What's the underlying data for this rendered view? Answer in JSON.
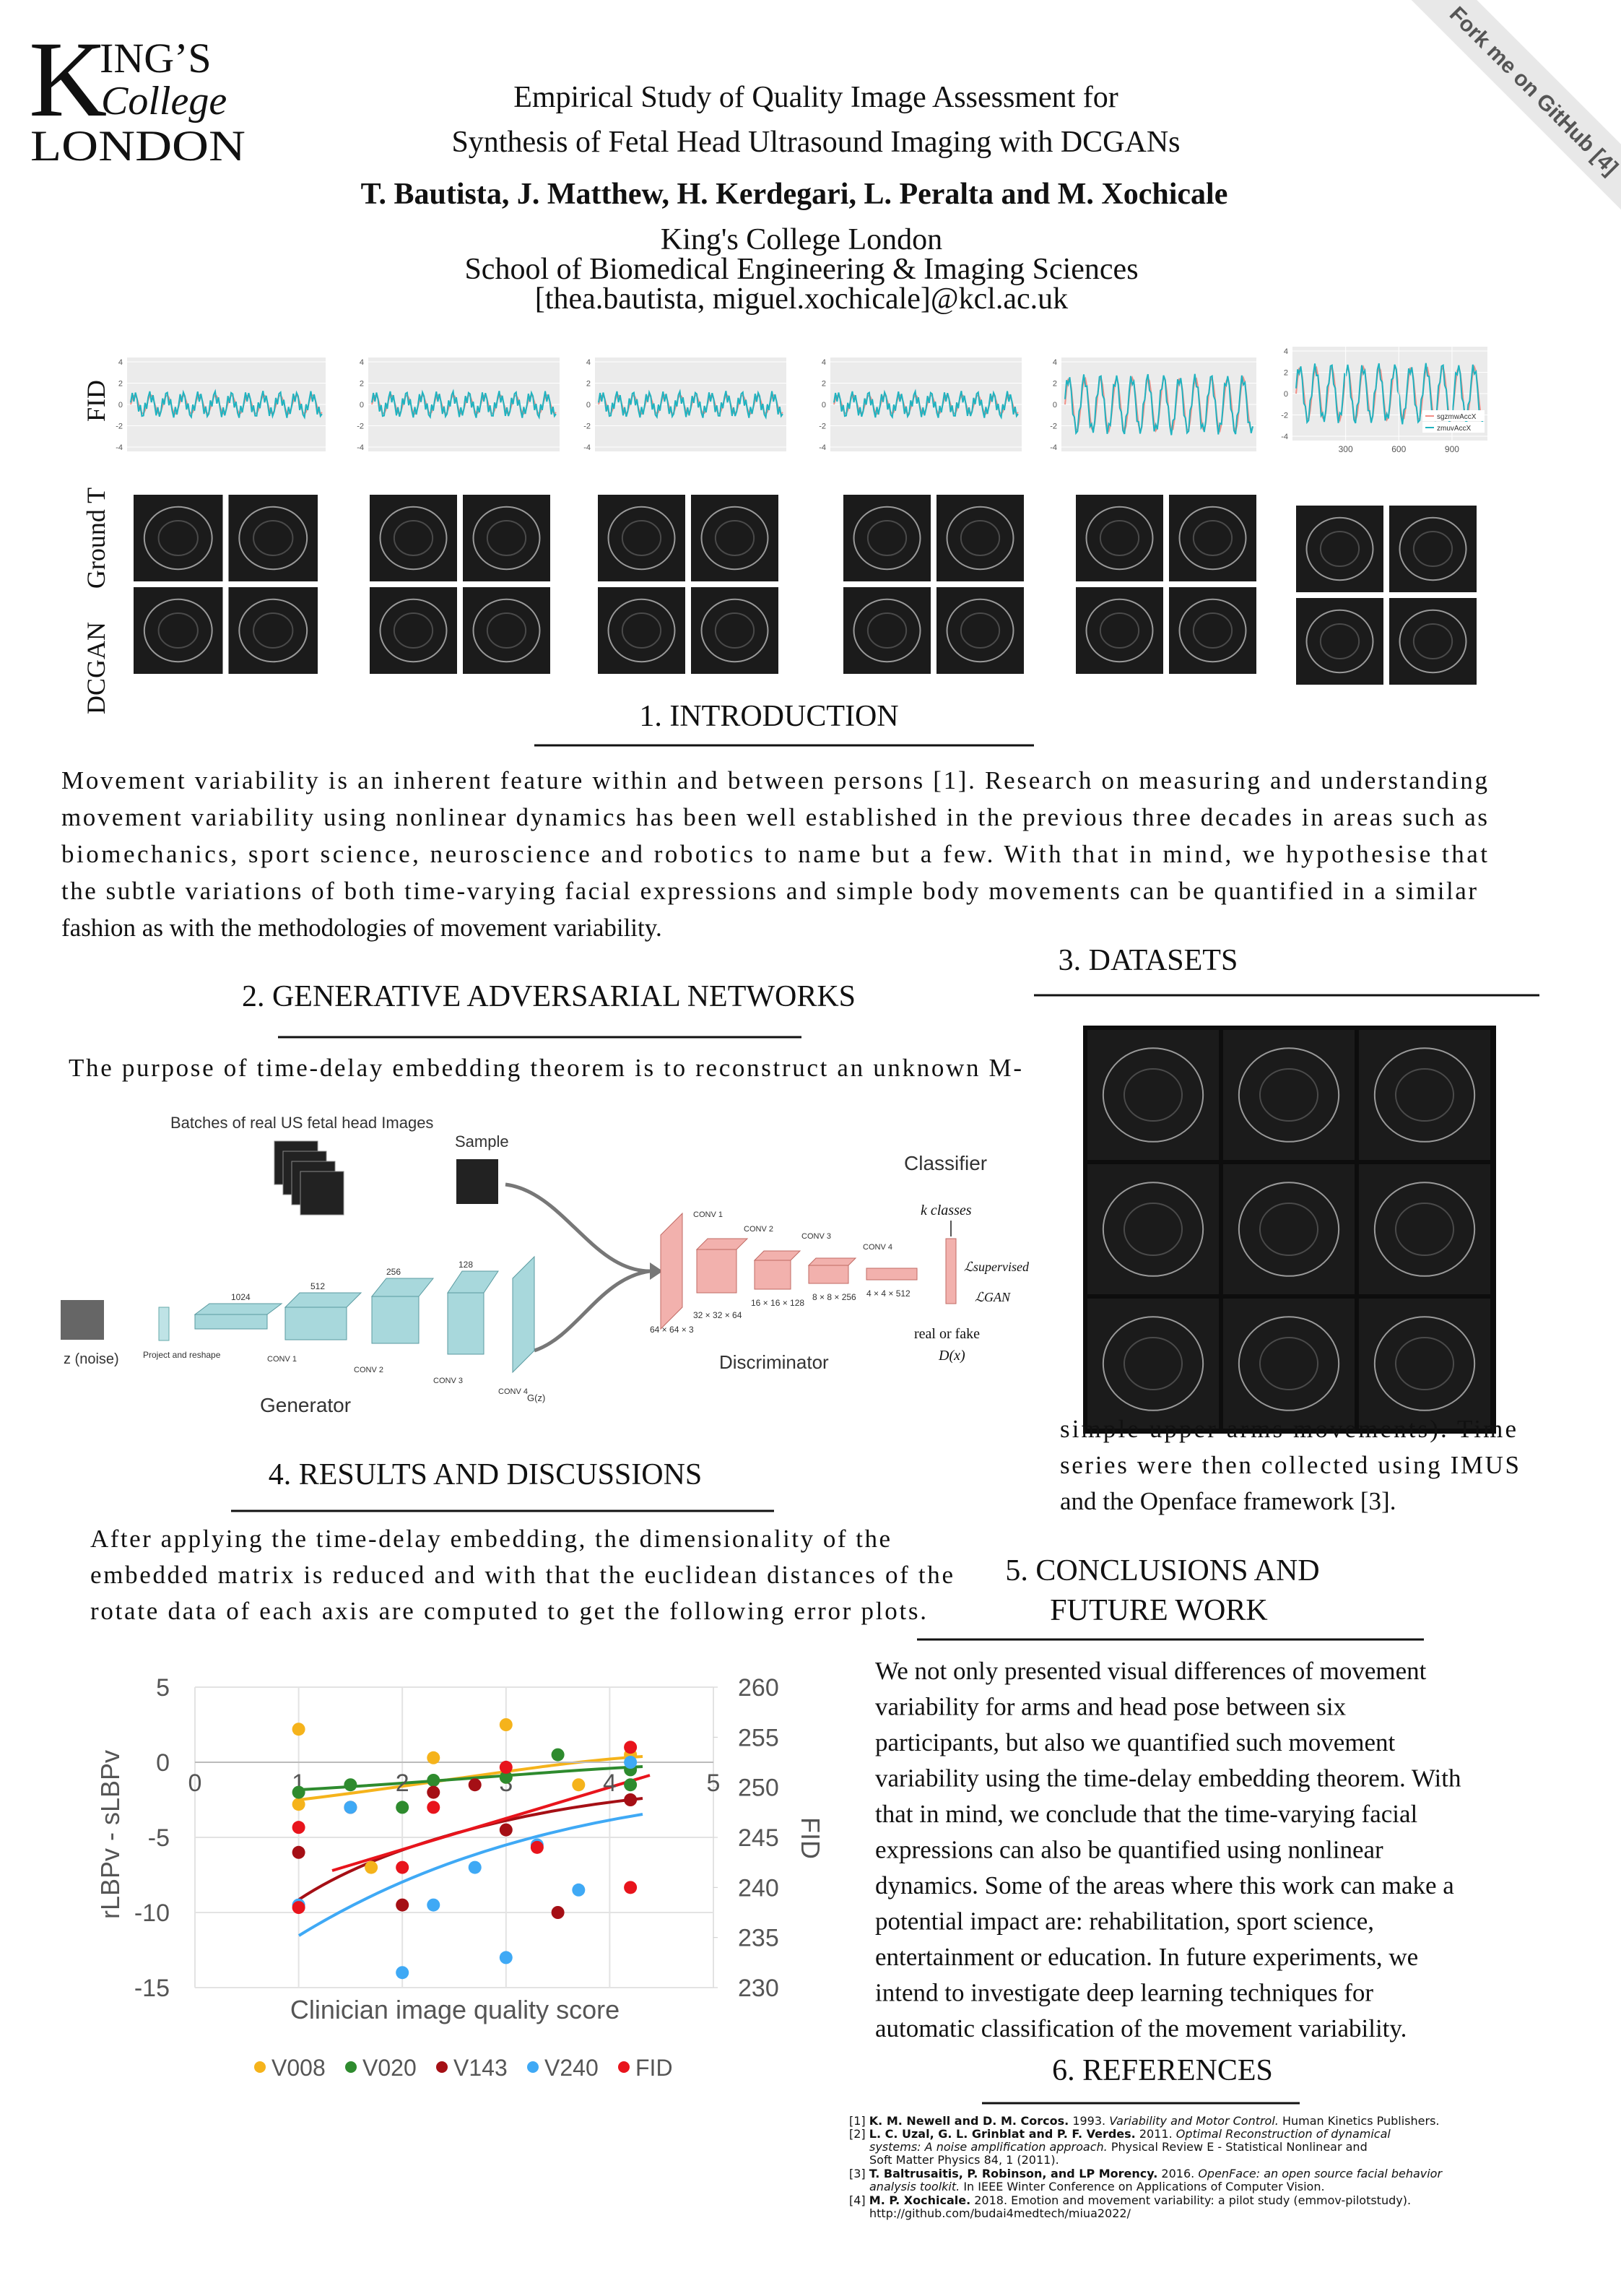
{
  "logo": {
    "initial": "K",
    "rest": "ING’S",
    "college": "College",
    "london": "LONDON"
  },
  "ribbon": "Fork me on GitHub [4]",
  "header": {
    "title": [
      "Empirical Study of Quality Image Assessment for",
      "Synthesis of Fetal Head Ultrasound Imaging with DCGANs"
    ],
    "authors": "T. Bautista, J. Matthew, H. Kerdegari, L. Peralta and M. Xochicale",
    "affiliation": [
      "King's College London",
      "School of Biomedical Engineering & Imaging Sciences",
      "[thea.bautista, miguel.xochicale]@kcl.ac.uk"
    ]
  },
  "row_labels": [
    "FID",
    "Ground T",
    "DCGAN"
  ],
  "fid_plots": {
    "yticks": [
      4,
      2,
      0,
      -2,
      -4
    ],
    "xticks": [
      300,
      600,
      900
    ],
    "legend": [
      "sgzmwAccX",
      "zmuvAccX"
    ]
  },
  "introduction": {
    "heading": "1. INTRODUCTION",
    "lines": [
      "Movement variability is an inherent feature within and between persons [1]. Research on measuring and understanding",
      "movement variability using nonlinear dynamics has been well established in the previous three decades in areas such as",
      "biomechanics, sport science, neuroscience and robotics to name but a few. With that in mind, we hypothesise that",
      "the subtle variations of both time-varying facial expressions and simple body movements can be quantified in a similar",
      "fashion as with the methodologies of movement variability."
    ]
  },
  "gan": {
    "heading": "2. GENERATIVE ADVERSARIAL NETWORKS",
    "lines": [
      "The purpose of time-delay embedding theorem is to reconstruct an unknown M-"
    ],
    "figure": {
      "batches": "Batches of real US fetal head Images",
      "sample": "Sample",
      "classifier": "Classifier",
      "k_classes": "k classes",
      "real_fake": "real or fake",
      "dx": "D(x)",
      "noise": "z (noise)",
      "generator": "Generator",
      "discriminator": "Discriminator",
      "project": "Project and reshape",
      "gz": "G(z)",
      "l_sup": "ℒsupervised",
      "l_gan": "ℒGAN",
      "gen_convs": [
        "CONV 1",
        "CONV 2",
        "CONV 3",
        "CONV 4"
      ],
      "gen_sizes": [
        "1024",
        "512",
        "256",
        "128"
      ],
      "disc_convs": [
        "CONV 1",
        "CONV 2",
        "CONV 3",
        "CONV 4"
      ],
      "disc_sizes": [
        "64 × 64 × 3",
        "32 × 32 × 64",
        "16 × 16 × 128",
        "8 × 8 × 256",
        "4 × 4 × 512"
      ]
    }
  },
  "datasets": {
    "heading": "3. DATASETS",
    "lines": [
      "simple upper arms movements). Time",
      "series were then collected using IMUS",
      "and the Openface framework [3]."
    ]
  },
  "results": {
    "heading": "4. RESULTS AND DISCUSSIONS",
    "lines": [
      "After applying the time-delay embedding, the dimensionality of the",
      "embedded matrix is reduced and with that the euclidean distances of the",
      "rotate data of each axis are computed to get the following error plots."
    ],
    "chart": {
      "type": "scatter",
      "x_label": "Clinician image quality score",
      "y_label": "rLBPv - sLBPv",
      "y2_label": "FID",
      "xlim": [
        0,
        5
      ],
      "xticks": [
        0,
        1,
        2,
        3,
        4,
        5
      ],
      "ylim": [
        -15,
        5
      ],
      "yticks": [
        5,
        0,
        -5,
        -10,
        -15
      ],
      "y2lim": [
        230,
        260
      ],
      "y2ticks": [
        260,
        255,
        250,
        245,
        240,
        235,
        230
      ],
      "grid": true,
      "series": [
        {
          "name": "V008",
          "color": "#f5b31b",
          "x": [
            1,
            1,
            1.7,
            2.3,
            3,
            3,
            3.7,
            4.2
          ],
          "values": [
            2.2,
            -2.8,
            -7,
            0.3,
            2.5,
            -1,
            -1.5,
            0.5
          ]
        },
        {
          "name": "V020",
          "color": "#2e8b2e",
          "x": [
            1,
            1.5,
            2,
            2.3,
            3,
            3.5,
            4.2,
            4.2
          ],
          "values": [
            -2,
            -1.5,
            -3,
            -1.2,
            -1,
            0.5,
            -0.5,
            -1.5
          ]
        },
        {
          "name": "V143",
          "color": "#a50f15",
          "x": [
            1,
            1.5,
            2,
            2.3,
            2.7,
            3,
            3.5,
            4.2
          ],
          "values": [
            -6,
            -3,
            -9.5,
            -2,
            -1.5,
            -4.5,
            -10,
            -2.5
          ]
        },
        {
          "name": "V240",
          "color": "#3fa9f5",
          "x": [
            1,
            1.5,
            2,
            2.3,
            2.7,
            3,
            3.3,
            3.7,
            4.2
          ],
          "values": [
            -9.5,
            -3,
            -14,
            -9.5,
            -7,
            -13,
            -5.5,
            -8.5,
            0
          ]
        },
        {
          "name": "FID",
          "color": "#e8141c",
          "axis": "y2",
          "x": [
            1,
            1,
            2,
            2.3,
            3,
            3.3,
            4.2,
            4.2
          ],
          "values": [
            246,
            238,
            242,
            248,
            252,
            244,
            254,
            240
          ]
        }
      ]
    }
  },
  "conclusions": {
    "heading": [
      "5. CONCLUSIONS AND",
      "FUTURE WORK"
    ],
    "lines": [
      "We not only presented visual differences of movement",
      "variability for arms and head pose between six",
      "participants, but also we quantified such movement",
      "variability using the time-delay embedding theorem. With",
      "that in mind, we conclude that the time-varying facial",
      "expressions can also be quantified using nonlinear",
      "dynamics.  Some of the areas where this work can make a",
      "potential impact are: rehabilitation, sport science,",
      "entertainment or education. In future experiments, we",
      "intend to investigate deep learning techniques for",
      "automatic classification of the movement variability."
    ]
  },
  "references": {
    "heading": "6. REFERENCES",
    "items": [
      {
        "num": "[1]",
        "authors": "K. M. Newell and D. M. Corcos.",
        "year": "1993.",
        "title": [
          "Variability and Motor Control."
        ],
        "source": [
          "Human Kinetics Publishers."
        ]
      },
      {
        "num": "[2]",
        "authors": "L. C. Uzal, G. L. Grinblat and P. F. Verdes.",
        "year": "2011.",
        "title": [
          "Optimal Reconstruction of dynamical",
          "systems: A noise amplification approach."
        ],
        "source": [
          "Physical Review E - Statistical Nonlinear and",
          "Soft Matter Physics 84, 1 (2011)."
        ]
      },
      {
        "num": "[3]",
        "authors": "T. Baltrusaitis, P. Robinson, and LP Morency.",
        "year": "2016.",
        "title": [
          "OpenFace: an open source facial behavior",
          "analysis toolkit."
        ],
        "source": [
          "In IEEE Winter Conference on Applications of Computer Vision."
        ]
      },
      {
        "num": "[4]",
        "authors": "M. P. Xochicale.",
        "year": "2018.",
        "text": "Emotion and movement variability: a pilot study (emmov-pilotstudy).",
        "url": "http://github.com/budai4medtech/miua2022/"
      }
    ]
  }
}
